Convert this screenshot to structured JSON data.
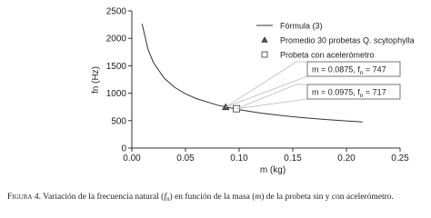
{
  "chart_data": {
    "type": "line",
    "x_label": "m (kg)",
    "y_label": "fn (Hz)",
    "xlim": [
      0,
      0.25
    ],
    "ylim": [
      0,
      2500
    ],
    "xticks": [
      {
        "value": 0,
        "label": "0.00"
      },
      0.05,
      {
        "value": 0.1,
        "label": "0.10"
      },
      0.15,
      {
        "value": 0.2,
        "label": "0.20"
      },
      0.25
    ],
    "yticks": [
      0,
      500,
      1000,
      1500,
      2000,
      2500
    ],
    "legend": "top-right",
    "series": [
      {
        "name": "Fórmula (3)",
        "type": "line",
        "color": "#333333",
        "x": [
          0.0095,
          0.015,
          0.02,
          0.03,
          0.04,
          0.05,
          0.06,
          0.08,
          0.1,
          0.12,
          0.14,
          0.16,
          0.18,
          0.2,
          0.215
        ],
        "values": [
          2267,
          1804,
          1563,
          1276,
          1105,
          988,
          902,
          781,
          699,
          638,
          591,
          553,
          521,
          494,
          477
        ]
      },
      {
        "name": "Promedio 30 probetas Q. scytophylla",
        "type": "scatter",
        "marker": "triangle",
        "color": "#555555",
        "x": [
          0.0875
        ],
        "values": [
          747
        ],
        "annotation": [
          "m = 0.0875, f",
          "n",
          " = 747"
        ]
      },
      {
        "name": "Probeta con acelerómetro",
        "type": "scatter",
        "marker": "square",
        "color": "#ffffff",
        "x": [
          0.0975
        ],
        "values": [
          717
        ],
        "annotation": [
          "m = 0.0975, f",
          "n",
          " = 717"
        ]
      }
    ]
  },
  "caption": [
    {
      "text": "Figura 4.",
      "style": "smallcaps"
    },
    {
      "text": " Variación de la frecuencia natural (",
      "style": "normal"
    },
    {
      "text": "f",
      "style": "italic"
    },
    {
      "text": "n",
      "style": "sub"
    },
    {
      "text": ") en función de la masa (",
      "style": "normal"
    },
    {
      "text": "m",
      "style": "italic"
    },
    {
      "text": ") de la probeta sin y con acelerómetro.",
      "style": "normal"
    }
  ]
}
